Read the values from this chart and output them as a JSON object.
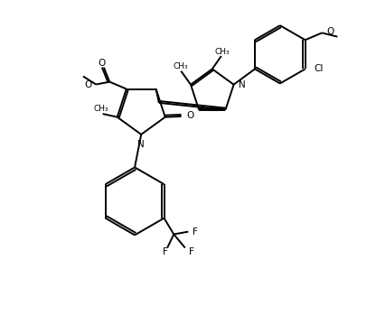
{
  "background": "#ffffff",
  "line_color": "#000000",
  "line_width": 1.4,
  "figsize": [
    4.16,
    3.6
  ],
  "dpi": 100,
  "xlim": [
    0,
    10
  ],
  "ylim": [
    0,
    10
  ]
}
